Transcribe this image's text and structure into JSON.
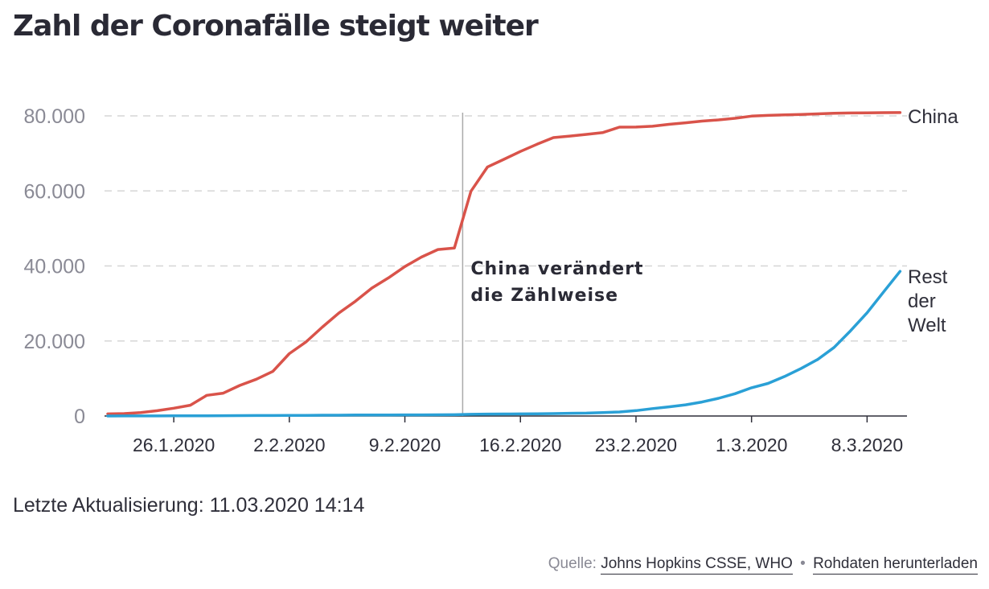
{
  "title": "Zahl der Coronafälle steigt weiter",
  "updated": "Letzte Aktualisierung: 11.03.2020 14:14",
  "source": {
    "label": "Quelle:",
    "source_link": "Johns Hopkins CSSE, WHO",
    "separator": "•",
    "download_link": "Rohdaten herunterladen"
  },
  "colors": {
    "china": "#d9534a",
    "rest": "#2aa0d6",
    "grid": "#d6d6d6",
    "axis": "#bbbbbb"
  },
  "chart_data": {
    "type": "line",
    "title": "Zahl der Coronafälle steigt weiter",
    "x": [
      "22.1.2020",
      "23.1.2020",
      "24.1.2020",
      "25.1.2020",
      "26.1.2020",
      "27.1.2020",
      "28.1.2020",
      "29.1.2020",
      "30.1.2020",
      "31.1.2020",
      "1.2.2020",
      "2.2.2020",
      "3.2.2020",
      "4.2.2020",
      "5.2.2020",
      "6.2.2020",
      "7.2.2020",
      "8.2.2020",
      "9.2.2020",
      "10.2.2020",
      "11.2.2020",
      "12.2.2020",
      "13.2.2020",
      "14.2.2020",
      "15.2.2020",
      "16.2.2020",
      "17.2.2020",
      "18.2.2020",
      "19.2.2020",
      "20.2.2020",
      "21.2.2020",
      "22.2.2020",
      "23.2.2020",
      "24.2.2020",
      "25.2.2020",
      "26.2.2020",
      "27.2.2020",
      "28.2.2020",
      "29.2.2020",
      "1.3.2020",
      "2.3.2020",
      "3.3.2020",
      "4.3.2020",
      "5.3.2020",
      "6.3.2020",
      "7.3.2020",
      "8.3.2020",
      "9.3.2020",
      "10.3.2020"
    ],
    "x_ticks": [
      "26.1.2020",
      "2.2.2020",
      "9.2.2020",
      "16.2.2020",
      "23.2.2020",
      "1.3.2020",
      "8.3.2020"
    ],
    "y_ticks": [
      0,
      20000,
      40000,
      60000,
      80000
    ],
    "y_tick_labels": [
      "0",
      "20.000",
      "40.000",
      "60.000",
      "80.000"
    ],
    "ylim": [
      0,
      80000
    ],
    "grid": true,
    "series": [
      {
        "name": "China",
        "label_lines": [
          "China"
        ],
        "values": [
          548,
          643,
          920,
          1406,
          2075,
          2877,
          5509,
          6087,
          8141,
          9802,
          11891,
          16630,
          19716,
          23707,
          27440,
          30587,
          34110,
          36814,
          39829,
          42354,
          44386,
          44759,
          59895,
          66358,
          68413,
          70513,
          72434,
          74211,
          74619,
          75077,
          75550,
          77001,
          77022,
          77241,
          77754,
          78166,
          78600,
          78928,
          79356,
          79932,
          80136,
          80261,
          80386,
          80537,
          80690,
          80770,
          80823,
          80860,
          80887
        ]
      },
      {
        "name": "Rest der Welt",
        "label_lines": [
          "Rest",
          "der",
          "Welt"
        ],
        "values": [
          7,
          11,
          21,
          28,
          43,
          50,
          70,
          84,
          107,
          122,
          137,
          157,
          181,
          208,
          224,
          252,
          261,
          273,
          290,
          310,
          329,
          341,
          442,
          510,
          535,
          554,
          597,
          648,
          724,
          772,
          920,
          1066,
          1445,
          1963,
          2441,
          2971,
          3729,
          4718,
          5950,
          7536,
          8696,
          10532,
          12686,
          15049,
          18263,
          22704,
          27520,
          33063,
          38562
        ]
      }
    ],
    "annotation": {
      "lines": [
        "China verändert",
        "die Zählweise"
      ],
      "x": "13.2.2020"
    }
  }
}
